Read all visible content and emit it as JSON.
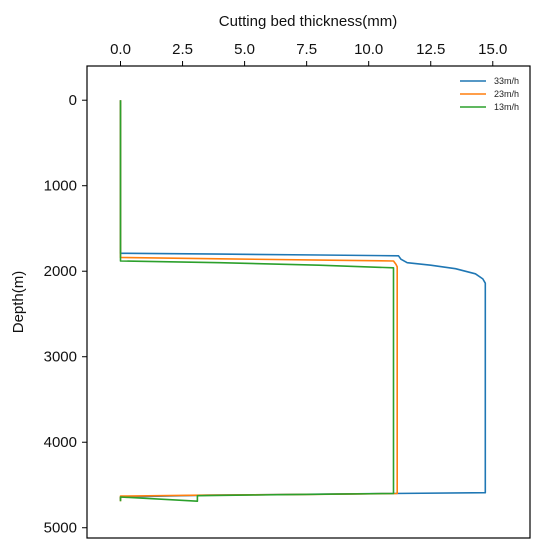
{
  "chart_data": {
    "type": "line",
    "xlabel": "Cutting bed thickness(mm)",
    "ylabel": "Depth(m)",
    "xlim": [
      -1.35,
      16.5
    ],
    "ylim": [
      -400,
      5120
    ],
    "y_inverted": true,
    "x_axis_position": "top",
    "grid": false,
    "legend_position": "top-right",
    "x_ticks": [
      {
        "value": 0,
        "label": "0.0"
      },
      {
        "value": 2.5,
        "label": "2.5"
      },
      {
        "value": 5,
        "label": "5.0"
      },
      {
        "value": 7.5,
        "label": "7.5"
      },
      {
        "value": 10,
        "label": "10.0"
      },
      {
        "value": 12.5,
        "label": "12.5"
      },
      {
        "value": 15,
        "label": "15.0"
      }
    ],
    "y_ticks": [
      {
        "value": 0,
        "label": "0"
      },
      {
        "value": 1000,
        "label": "1000"
      },
      {
        "value": 2000,
        "label": "2000"
      },
      {
        "value": 3000,
        "label": "3000"
      },
      {
        "value": 4000,
        "label": "4000"
      },
      {
        "value": 5000,
        "label": "5000"
      }
    ],
    "series": [
      {
        "name": "33m/h",
        "color": "#1f77b4",
        "points": [
          [
            0,
            0
          ],
          [
            0,
            1790
          ],
          [
            4,
            1800
          ],
          [
            8,
            1810
          ],
          [
            11.2,
            1820
          ],
          [
            11.3,
            1860
          ],
          [
            11.55,
            1900
          ],
          [
            12.5,
            1930
          ],
          [
            13.5,
            1970
          ],
          [
            14.3,
            2030
          ],
          [
            14.6,
            2090
          ],
          [
            14.7,
            2140
          ],
          [
            14.7,
            4590
          ],
          [
            10.9,
            4600
          ],
          [
            3.5,
            4620
          ],
          [
            0,
            4640
          ],
          [
            0,
            4670
          ]
        ]
      },
      {
        "name": "23m/h",
        "color": "#ff7f0e",
        "points": [
          [
            0,
            0
          ],
          [
            0,
            1840
          ],
          [
            4,
            1855
          ],
          [
            8,
            1870
          ],
          [
            11.0,
            1880
          ],
          [
            11.1,
            1920
          ],
          [
            11.15,
            1950
          ],
          [
            11.15,
            4600
          ],
          [
            7.5,
            4610
          ],
          [
            3.2,
            4620
          ],
          [
            0,
            4630
          ],
          [
            0,
            4690
          ]
        ]
      },
      {
        "name": "13m/h",
        "color": "#2ca02c",
        "points": [
          [
            0,
            0
          ],
          [
            0,
            1880
          ],
          [
            4,
            1900
          ],
          [
            8,
            1930
          ],
          [
            11.0,
            1960
          ],
          [
            11.0,
            1990
          ],
          [
            11.0,
            4600
          ],
          [
            7.3,
            4610
          ],
          [
            3.1,
            4625
          ],
          [
            3.1,
            4690
          ],
          [
            0,
            4640
          ],
          [
            0,
            4690
          ]
        ]
      }
    ]
  }
}
